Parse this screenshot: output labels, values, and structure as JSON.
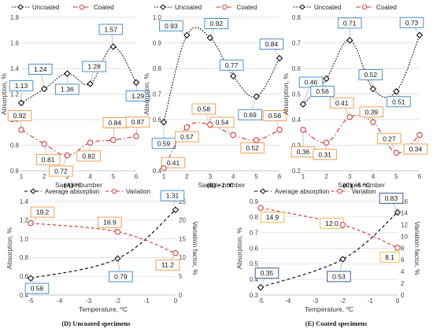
{
  "chart_data": [
    {
      "type": "line",
      "caption": "(A) °C",
      "xlabel": "Sample number",
      "ylabel": "Absorption, %",
      "xlim": [
        1,
        6
      ],
      "ylim": [
        0.6,
        1.8
      ],
      "yticks": [
        "0.6",
        "0.8",
        "1.0",
        "1.2",
        "1.4",
        "1.6",
        "1.8"
      ],
      "xticks": [
        "1",
        "2",
        "3",
        "4",
        "5",
        "6"
      ],
      "legend_position": "top",
      "series": [
        {
          "name": "Uncoated",
          "color": "#000000",
          "marker": "diamond",
          "style": "dotted",
          "x": [
            1,
            2,
            3,
            4,
            5,
            6
          ],
          "values": [
            1.13,
            1.24,
            1.36,
            1.28,
            1.57,
            1.29
          ],
          "labels": [
            "1.13",
            "1.24",
            "1.36",
            "1.28",
            "1.57",
            "1.29"
          ]
        },
        {
          "name": "Coated",
          "color": "#d32f2f",
          "marker": "circle",
          "style": "dashdot",
          "x": [
            1,
            2,
            3,
            4,
            5,
            6
          ],
          "values": [
            0.92,
            0.81,
            0.72,
            0.82,
            0.84,
            0.87
          ],
          "labels": [
            "0.92",
            "0.81",
            "0.72",
            "0.82",
            "0.84",
            "0.87"
          ]
        }
      ]
    },
    {
      "type": "line",
      "caption": "(B) −2 °C",
      "xlabel": "Sample number",
      "ylabel": "Absorption, %",
      "xlim": [
        1,
        6
      ],
      "ylim": [
        0.4,
        1.0
      ],
      "yticks": [
        "0.4",
        "0.5",
        "0.6",
        "0.7",
        "0.8",
        "0.9",
        "1.0"
      ],
      "xticks": [
        "1",
        "2",
        "3",
        "4",
        "5",
        "6"
      ],
      "legend_position": "top",
      "series": [
        {
          "name": "Uncoated",
          "color": "#000000",
          "marker": "diamond",
          "style": "dotted",
          "x": [
            1,
            2,
            3,
            4,
            5,
            6
          ],
          "values": [
            0.59,
            0.93,
            0.92,
            0.77,
            0.69,
            0.84
          ],
          "labels": [
            "0.59",
            "0.93",
            "0.92",
            "0.77",
            "0.69",
            "0.84"
          ]
        },
        {
          "name": "Coated",
          "color": "#d32f2f",
          "marker": "circle",
          "style": "dashdot",
          "x": [
            1,
            2,
            3,
            4,
            5,
            6
          ],
          "values": [
            0.41,
            0.57,
            0.58,
            0.54,
            0.52,
            0.56
          ],
          "labels": [
            "0.41",
            "0.57",
            "0.58",
            "0.54",
            "0.52",
            "0.56"
          ]
        }
      ]
    },
    {
      "type": "line",
      "caption": "(C) −5 °C",
      "xlabel": "Sample number",
      "ylabel": "Absorption, %",
      "xlim": [
        1,
        6
      ],
      "ylim": [
        0.2,
        0.8
      ],
      "yticks": [
        "0.2",
        "0.3",
        "0.4",
        "0.5",
        "0.6",
        "0.7",
        "0.8"
      ],
      "xticks": [
        "1",
        "2",
        "3",
        "4",
        "5",
        "6"
      ],
      "legend_position": "top",
      "series": [
        {
          "name": "Uncoated",
          "color": "#000000",
          "marker": "diamond",
          "style": "dotted",
          "x": [
            1,
            2,
            3,
            4,
            5,
            6
          ],
          "values": [
            0.46,
            0.56,
            0.71,
            0.52,
            0.51,
            0.73
          ],
          "labels": [
            "0.46",
            "0.56",
            "0.71",
            "0.52",
            "0.51",
            "0.73"
          ]
        },
        {
          "name": "Coated",
          "color": "#d32f2f",
          "marker": "circle",
          "style": "dashdot",
          "x": [
            1,
            2,
            3,
            4,
            5,
            6
          ],
          "values": [
            0.36,
            0.31,
            0.41,
            0.39,
            0.27,
            0.34
          ],
          "labels": [
            "0.36",
            "0.31",
            "0.41",
            "0.39",
            "0.27",
            "0.34"
          ]
        }
      ]
    },
    {
      "type": "line",
      "caption": "(D) Uncoated specimens",
      "xlabel": "Temperature, ⁰C",
      "ylabel": "Absorption, %",
      "y2label": "Variation factor, %",
      "xlim": [
        -5,
        0
      ],
      "ylim": [
        0.4,
        1.4
      ],
      "y2lim": [
        0,
        25
      ],
      "yticks": [
        "0.4",
        "0.6",
        "0.8",
        "1.0",
        "1.2",
        "1.4"
      ],
      "y2ticks": [
        "0",
        "5",
        "10",
        "15",
        "20",
        "25"
      ],
      "xticks": [
        "-5",
        "-4",
        "-3",
        "-2",
        "-1",
        "0"
      ],
      "legend_position": "top",
      "series": [
        {
          "name": "Average absorption",
          "color": "#000000",
          "marker": "diamond",
          "style": "dashed",
          "axis": "left",
          "x": [
            -5,
            -2,
            0
          ],
          "values": [
            0.58,
            0.79,
            1.31
          ],
          "labels": [
            "0.58",
            "0.79",
            "1.31"
          ]
        },
        {
          "name": "Variation",
          "color": "#d32f2f",
          "marker": "circle",
          "style": "dashed",
          "axis": "right",
          "x": [
            -5,
            -2,
            0
          ],
          "values": [
            19.2,
            16.9,
            11.2
          ],
          "labels": [
            "19.2",
            "16.9",
            "11.2"
          ]
        }
      ]
    },
    {
      "type": "line",
      "caption": "(E) Coated specimens",
      "xlabel": "Temperature, ⁰C",
      "ylabel": "Absorption, %",
      "y2label": "Variation factor, %",
      "xlim": [
        -5,
        0
      ],
      "ylim": [
        0.3,
        0.9
      ],
      "y2lim": [
        0,
        16
      ],
      "yticks": [
        "0.3",
        "0.4",
        "0.5",
        "0.6",
        "0.7",
        "0.8",
        "0.9"
      ],
      "y2ticks": [
        "0",
        "2",
        "4",
        "6",
        "8",
        "10",
        "12",
        "14",
        "16"
      ],
      "xticks": [
        "-5",
        "-4",
        "-3",
        "-2",
        "-1",
        "0"
      ],
      "legend_position": "top",
      "series": [
        {
          "name": "Average absorption",
          "color": "#000000",
          "marker": "diamond",
          "style": "dashed",
          "axis": "left",
          "x": [
            -5,
            -2,
            0
          ],
          "values": [
            0.35,
            0.53,
            0.83
          ],
          "labels": [
            "0.35",
            "0.53",
            "0.83"
          ]
        },
        {
          "name": "Variation",
          "color": "#d32f2f",
          "marker": "circle",
          "style": "dashed",
          "axis": "right",
          "x": [
            -5,
            -2,
            0
          ],
          "values": [
            14.9,
            12.0,
            8.1
          ],
          "labels": [
            "14.9",
            "12.0",
            "8.1"
          ]
        }
      ]
    }
  ],
  "colors": {
    "uncoated_box": "#4a90c8",
    "coated_box": "#f0a050",
    "avg_box_d": "#4a90c8",
    "var_box_d": "#f0a050",
    "avg_box_e": "#3a5a8c",
    "var_box_e": "#f0c040"
  }
}
